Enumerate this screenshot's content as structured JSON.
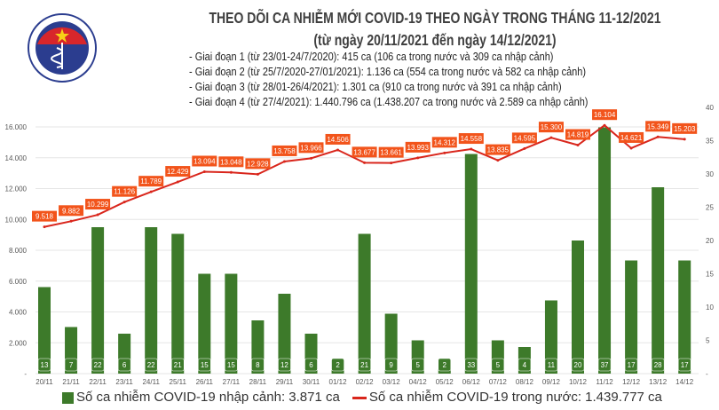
{
  "header": {
    "title": "THEO DÕI CA NHIỄM MỚI COVID-19 THEO NGÀY TRONG THÁNG 11-12/2021",
    "subtitle": "(từ ngày 20/11/2021 đến ngày 14/12/2021)",
    "notes": [
      "- Giai đoạn 1 (từ 23/01-24/7/2020): 415 ca (106 ca trong nước và 309 ca nhập cảnh)",
      "- Giai đoạn 2 (từ 25/7/2020-27/01/2021): 1.136 ca (554 ca trong nước và 582 ca nhập cảnh)",
      "- Giai đoạn 3 (từ 28/01-26/4/2021): 1.301 ca (910 ca trong nước và 391 ca nhập cảnh)",
      "- Giai đoạn 4 (từ 27/4/2021): 1.440.796 ca (1.438.207 ca trong nước và 2.589 ca nhập cảnh)"
    ],
    "logo_text": "BỘ Y TẾ · MINISTRY OF HEALTH"
  },
  "legend": {
    "bar": "Số ca nhiễm COVID-19 nhập cảnh: 3.871 ca",
    "line": "Số ca nhiễm COVID-19 trong nước: 1.439.777 ca"
  },
  "colors": {
    "bar": "#3d7a2a",
    "line": "#d9261c",
    "line_label": "#f2541b",
    "title": "#404040"
  },
  "chart_data": {
    "type": "bar+line",
    "categories": [
      "20/11",
      "21/11",
      "22/11",
      "23/11",
      "24/11",
      "25/11",
      "26/11",
      "27/11",
      "28/11",
      "29/11",
      "30/11",
      "01/12",
      "02/12",
      "03/12",
      "04/12",
      "05/12",
      "06/12",
      "07/12",
      "08/12",
      "09/12",
      "10/12",
      "11/12",
      "12/12",
      "13/12",
      "14/12"
    ],
    "series": [
      {
        "name": "Số ca nhiễm COVID-19 nhập cảnh: 3.871 ca",
        "type": "bar",
        "axis": "right",
        "values": [
          13,
          7,
          22,
          6,
          22,
          21,
          15,
          15,
          8,
          12,
          6,
          2,
          21,
          9,
          5,
          2,
          33,
          5,
          4,
          11,
          20,
          37,
          17,
          28,
          17
        ]
      },
      {
        "name": "Số ca nhiễm COVID-19 trong nước: 1.439.777 ca",
        "type": "line",
        "axis": "left",
        "values": [
          9518,
          9882,
          10299,
          11126,
          11789,
          12429,
          13094,
          13048,
          12928,
          13758,
          13966,
          14506,
          13677,
          13661,
          13993,
          14312,
          14558,
          13835,
          14595,
          15300,
          14819,
          16104,
          14621,
          15349,
          15203
        ],
        "labels": [
          "9.518",
          "9.882",
          "10.299",
          "11.126",
          "11.789",
          "12.429",
          "13.094",
          "13.048",
          "12.928",
          "13.758",
          "13.966",
          "14.506",
          "13.677",
          "13.661",
          "13.993",
          "14.312",
          "14.558",
          "13.835",
          "14.595",
          "15.300",
          "14.819",
          "16.104",
          "14.621",
          "15.349",
          "15.203"
        ]
      }
    ],
    "y_left": {
      "range": [
        0,
        16000
      ],
      "ticks": [
        "-",
        "2.000",
        "4.000",
        "6.000",
        "8.000",
        "10.000",
        "12.000",
        "14.000",
        "16.000"
      ]
    },
    "y_right": {
      "range": [
        0,
        40
      ],
      "ticks": [
        "-",
        "5",
        "10",
        "15",
        "20",
        "25",
        "30",
        "35",
        "40"
      ]
    },
    "grid": true,
    "legend_position": "bottom"
  }
}
